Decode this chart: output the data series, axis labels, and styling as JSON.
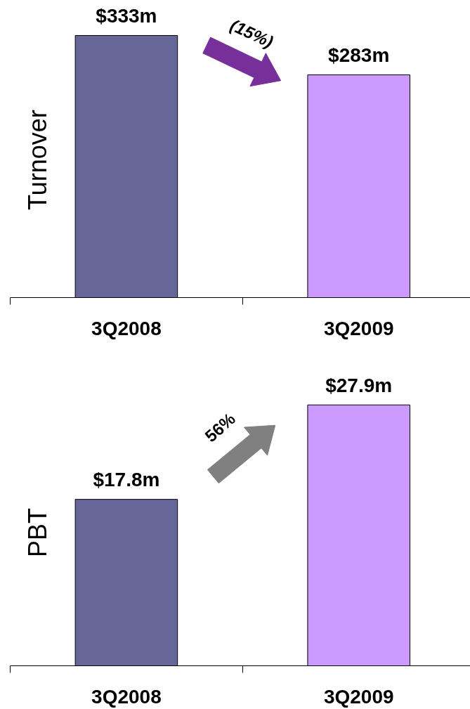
{
  "chart_data": [
    {
      "type": "bar",
      "ylabel": "Turnover",
      "categories": [
        "3Q2008",
        "3Q2009"
      ],
      "values": [
        333,
        283
      ],
      "colors": [
        "#666699",
        "#cc99ff"
      ],
      "value_labels": [
        "$333m",
        "$283m"
      ],
      "annotations": [
        "(15%)"
      ]
    },
    {
      "type": "bar",
      "ylabel": "PBT",
      "categories": [
        "3Q2008",
        "3Q2009"
      ],
      "values": [
        17.8,
        27.9
      ],
      "colors": [
        "#666699",
        "#cc99ff"
      ],
      "value_labels": [
        "$17.8m",
        "$27.9m"
      ],
      "annotations": [
        "56%"
      ]
    }
  ]
}
